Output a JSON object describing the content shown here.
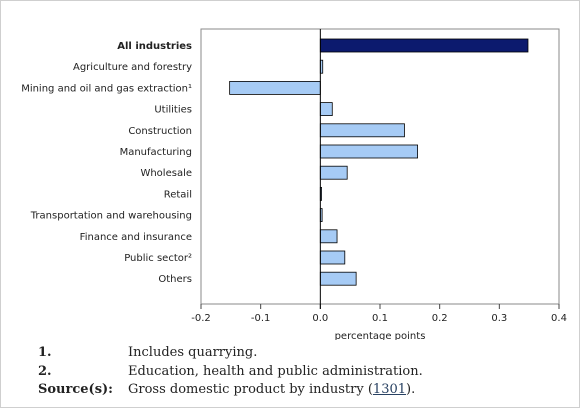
{
  "chart_data": {
    "type": "bar",
    "orientation": "horizontal",
    "categories": [
      "All industries",
      "Agriculture and forestry",
      "Mining and oil and gas extraction¹",
      "Utilities",
      "Construction",
      "Manufacturing",
      "Wholesale",
      "Retail",
      "Transportation and warehousing",
      "Finance and insurance",
      "Public sector²",
      "Others"
    ],
    "values": [
      0.348,
      0.004,
      -0.152,
      0.02,
      0.141,
      0.163,
      0.045,
      0.002,
      0.003,
      0.028,
      0.041,
      0.06
    ],
    "highlight_index": 0,
    "xlabel": "percentage points",
    "xlim": [
      -0.2,
      0.4
    ],
    "xticks": [
      "-0.2",
      "-0.1",
      "0.0",
      "0.1",
      "0.2",
      "0.3",
      "0.4"
    ],
    "colors": {
      "highlight": "#0c1a6e",
      "bar": "#a6cbf5",
      "edge": "#000000"
    },
    "grid": false
  },
  "notes": [
    {
      "marker": "1.",
      "text": "Includes quarrying."
    },
    {
      "marker": "2.",
      "text": "Education, health and public administration."
    }
  ],
  "source": {
    "marker": "Source(s):",
    "text_before": "Gross domestic product by industry (",
    "link_text": "1301",
    "text_after": ")."
  }
}
